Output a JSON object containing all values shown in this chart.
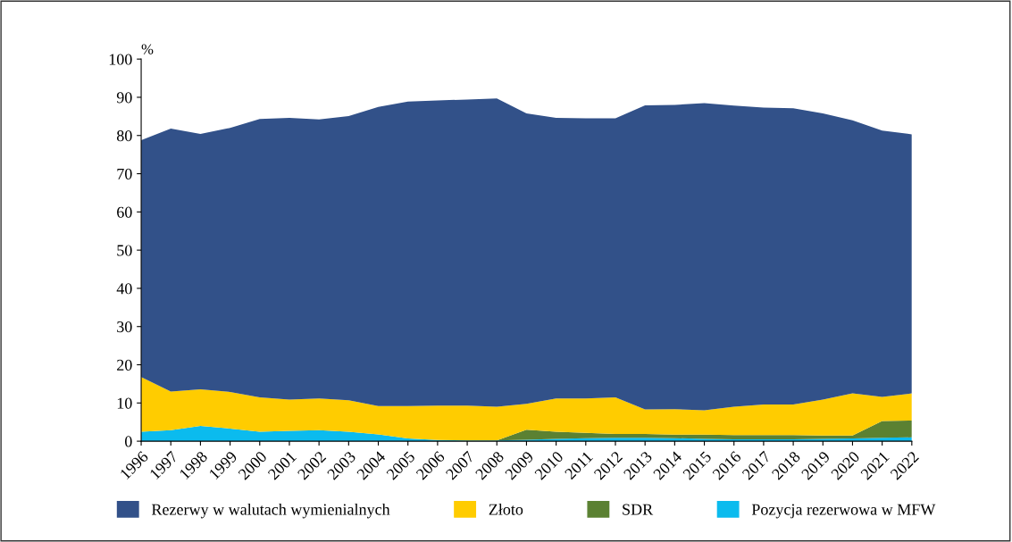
{
  "chart_data": {
    "type": "area",
    "stacked": true,
    "ylabel": "%",
    "categories": [
      "1996",
      "1997",
      "1998",
      "1999",
      "2000",
      "2001",
      "2002",
      "2003",
      "2004",
      "2005",
      "2006",
      "2007",
      "2008",
      "2009",
      "2010",
      "2011",
      "2012",
      "2013",
      "2014",
      "2015",
      "2016",
      "2017",
      "2018",
      "2019",
      "2020",
      "2021",
      "2022"
    ],
    "ylim": [
      0,
      100
    ],
    "yticks": [
      0,
      10,
      20,
      30,
      40,
      50,
      60,
      70,
      80,
      90,
      100
    ],
    "grid": false,
    "legend": "bottom",
    "series": [
      {
        "name": "Pozycja rezerwowa w MFW",
        "color": "#0bbbee",
        "values": [
          2.5,
          2.9,
          4.0,
          3.3,
          2.5,
          2.7,
          2.9,
          2.5,
          1.8,
          0.7,
          0.3,
          0.2,
          0.2,
          0.4,
          0.6,
          0.8,
          0.9,
          0.9,
          0.8,
          0.6,
          0.5,
          0.5,
          0.5,
          0.6,
          0.7,
          0.9,
          1.0
        ]
      },
      {
        "name": "SDR",
        "color": "#5b8132",
        "values": [
          0,
          0,
          0,
          0,
          0,
          0,
          0,
          0,
          0,
          0,
          0,
          0,
          0,
          2.6,
          1.9,
          1.4,
          1.0,
          1.0,
          0.9,
          1.1,
          1.1,
          1.1,
          1.1,
          0.9,
          0.8,
          4.4,
          4.4
        ]
      },
      {
        "name": "Złoto",
        "color": "#ffcc00",
        "values": [
          14.3,
          10.1,
          9.6,
          9.6,
          9.0,
          8.2,
          8.3,
          8.2,
          7.4,
          8.5,
          9.0,
          9.1,
          8.8,
          6.8,
          8.7,
          9.0,
          9.6,
          6.4,
          6.7,
          6.4,
          7.4,
          8.0,
          8.0,
          9.4,
          11.0,
          6.3,
          7.1
        ]
      },
      {
        "name": "Rezerwy w walutach wymienialnych",
        "color": "#325189",
        "values": [
          62.0,
          68.8,
          66.8,
          69.1,
          72.8,
          73.7,
          73.0,
          74.4,
          78.3,
          79.7,
          79.9,
          80.1,
          80.7,
          76.0,
          73.4,
          73.3,
          73.0,
          79.6,
          79.6,
          80.4,
          78.8,
          77.7,
          77.5,
          74.9,
          71.5,
          69.7,
          67.8
        ]
      }
    ]
  }
}
